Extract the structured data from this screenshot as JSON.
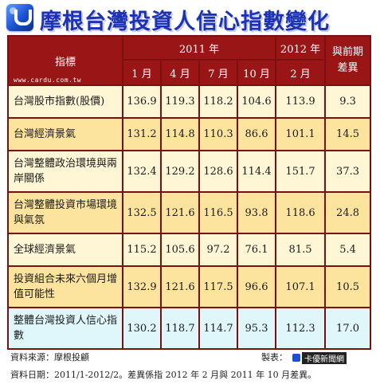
{
  "title": "摩根台灣投資人信心指數變化",
  "logo_icon": "udn-logo-icon",
  "watermark": "www.cardu.com.tw",
  "table": {
    "header": {
      "indicator": "指標",
      "year2011": "2011 年",
      "year2012": "2012 年",
      "diff": "與前期差異",
      "months": [
        "1 月",
        "4 月",
        "7 月",
        "10 月",
        "2 月"
      ]
    },
    "rows": [
      {
        "label": "台灣股市指數(股價)",
        "values": [
          "136.9",
          "119.3",
          "118.2",
          "104.6",
          "113.9",
          "9.3"
        ]
      },
      {
        "label": "台灣經濟景氣",
        "values": [
          "131.2",
          "114.8",
          "110.3",
          "86.6",
          "101.1",
          "14.5"
        ]
      },
      {
        "label": "台灣整體政治環境與兩岸關係",
        "values": [
          "132.4",
          "129.2",
          "128.6",
          "114.4",
          "151.7",
          "37.3"
        ]
      },
      {
        "label": "台灣整體投資市場環境與氣氛",
        "values": [
          "132.5",
          "121.6",
          "116.5",
          "93.8",
          "118.6",
          "24.8"
        ]
      },
      {
        "label": "全球經濟景氣",
        "values": [
          "115.2",
          "105.6",
          "97.2",
          "76.1",
          "81.5",
          "5.4"
        ]
      },
      {
        "label": "投資組合未來六個月增值可能性",
        "values": [
          "132.9",
          "121.6",
          "117.5",
          "96.6",
          "107.1",
          "10.5"
        ]
      },
      {
        "label": "整體台灣投資人信心指數",
        "values": [
          "130.2",
          "118.7",
          "114.7",
          "95.3",
          "112.3",
          "17.0"
        ]
      }
    ]
  },
  "footer": {
    "source": "資料來源：摩根投顧",
    "maker_label": "製表：",
    "maker_name": "卡優新聞網",
    "date_note": "資料日期：2011/1-2012/2。差異係指 2012 年 2 月與 2011 年 10 月差異。"
  },
  "colors": {
    "header_bg": "#9a1616",
    "row_light": "#fff6d6",
    "row_dark": "#fce39e",
    "row_total": "#dff6fb",
    "title": "#1b31b8"
  }
}
